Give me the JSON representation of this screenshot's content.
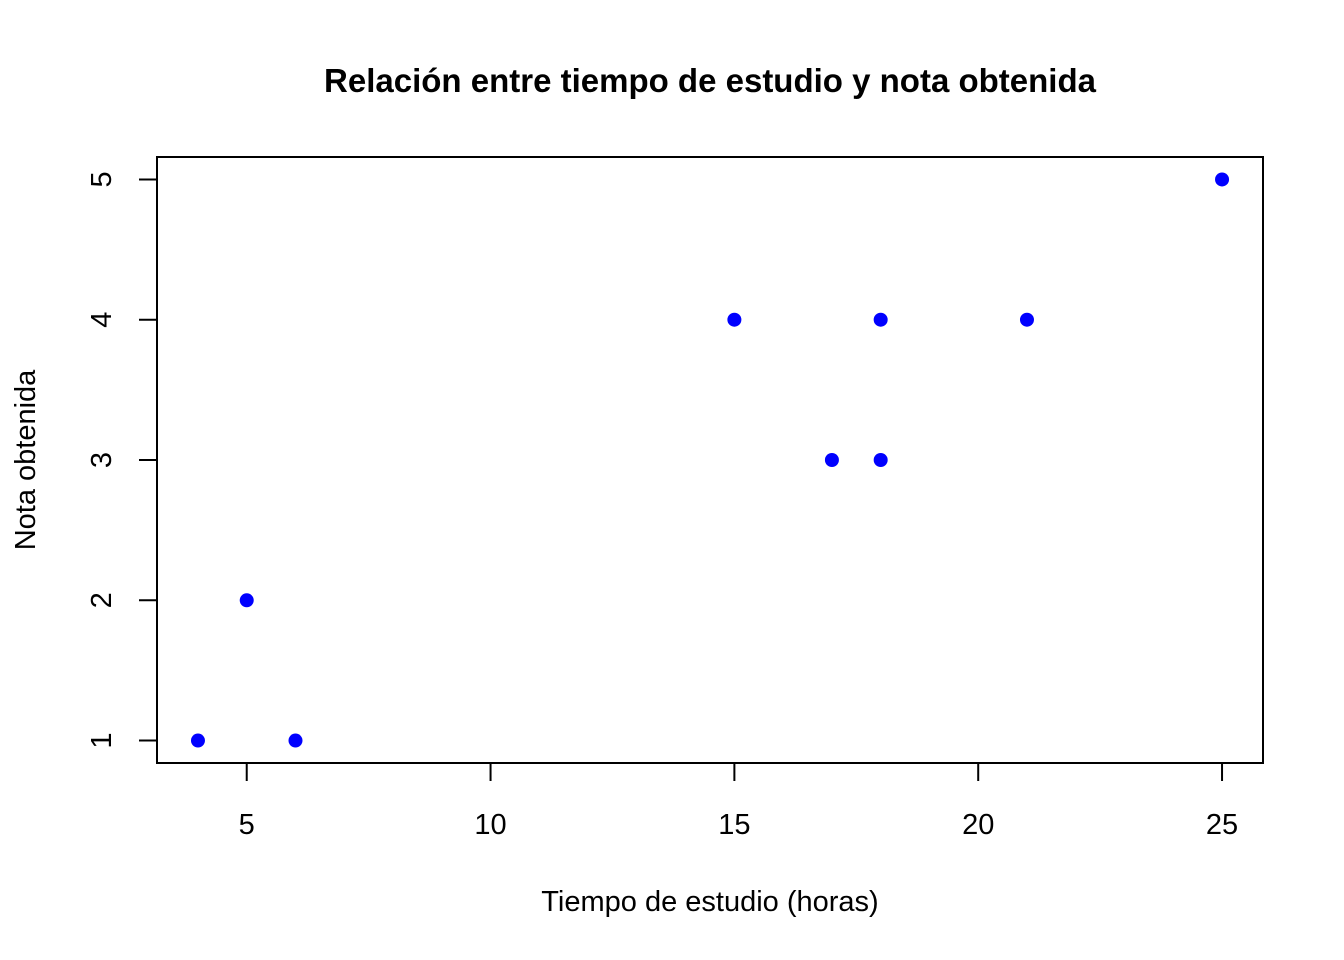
{
  "chart_data": {
    "type": "scatter",
    "title": "Relación entre tiempo de estudio y nota obtenida",
    "xlabel": "Tiempo de estudio (horas)",
    "ylabel": "Nota obtenida",
    "xlim": [
      3.16,
      25.84
    ],
    "ylim": [
      0.84,
      5.16
    ],
    "x_ticks": [
      5,
      10,
      15,
      20,
      25
    ],
    "y_ticks": [
      1,
      2,
      3,
      4,
      5
    ],
    "grid": false,
    "marker_color": "#0000ff",
    "series": [
      {
        "x": [
          4,
          5,
          6,
          15,
          17,
          18,
          18,
          21,
          25
        ],
        "y": [
          1,
          2,
          1,
          4,
          3,
          3,
          4,
          4,
          5
        ]
      }
    ]
  }
}
